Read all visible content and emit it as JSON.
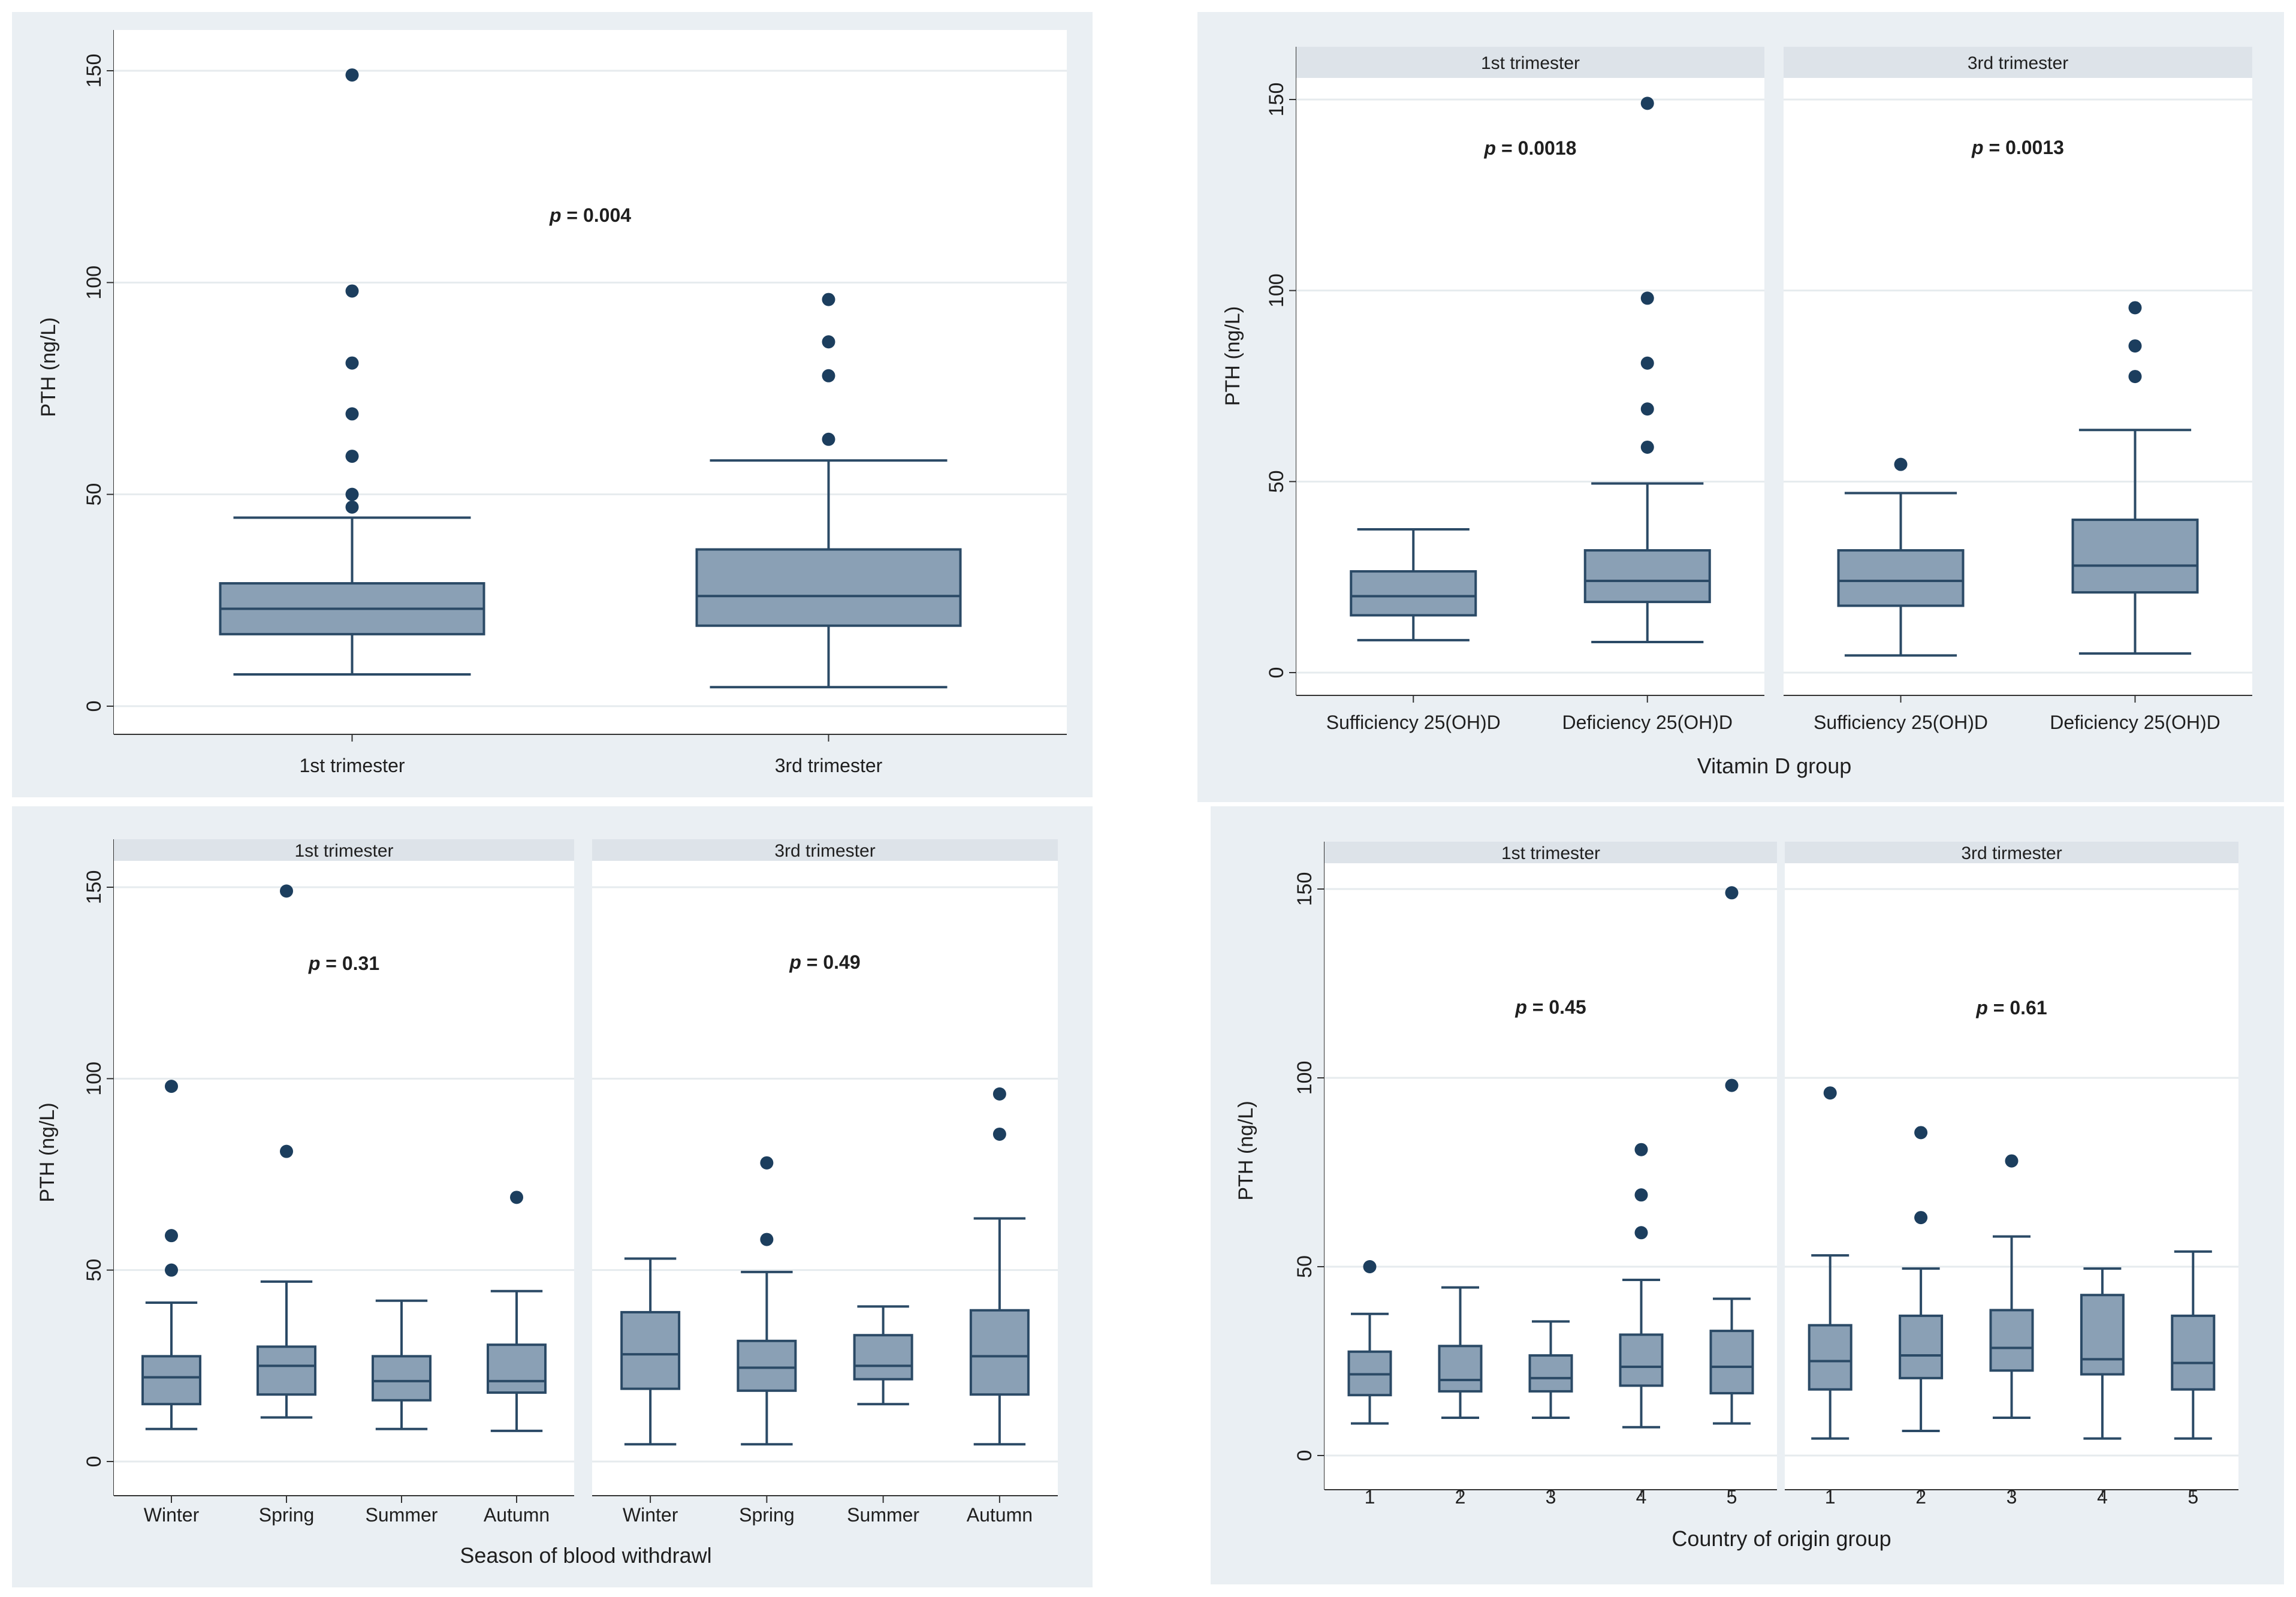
{
  "style": {
    "panel_bg": "#eaeff3",
    "box_fill": "#8aa0b5",
    "box_stroke": "#2b4a66",
    "outlier": "#1c3e5e",
    "strip_bg": "#dde3e9",
    "grid": "#e6ebee"
  },
  "chart_data": [
    {
      "panel_id": "a",
      "type": "boxplot",
      "ylabel": "PTH (ng/L)",
      "xlabel": "",
      "ylim": [
        0,
        150
      ],
      "yticks": [
        0,
        50,
        100,
        150
      ],
      "ytick_labels": [
        "0",
        "50",
        "100",
        "150"
      ],
      "grid": true,
      "facets": [
        {
          "strip": "",
          "annotation": "p = 0.004",
          "categories": [
            "1st trimester",
            "3rd trimester"
          ],
          "boxes": [
            {
              "min": 7.5,
              "q1": 17,
              "median": 23,
              "q3": 29,
              "max": 44.5,
              "outliers": [
                47,
                50,
                59,
                69,
                81,
                98,
                149
              ]
            },
            {
              "min": 4.5,
              "q1": 19,
              "median": 26,
              "q3": 37,
              "max": 58,
              "outliers": [
                63,
                78,
                86,
                96
              ]
            }
          ]
        }
      ]
    },
    {
      "panel_id": "b",
      "type": "boxplot",
      "ylabel": "PTH (ng/L)",
      "xlabel": "Vitamin D group",
      "ylim": [
        0,
        150
      ],
      "yticks": [
        0,
        50,
        100,
        150
      ],
      "ytick_labels": [
        "0",
        "50",
        "100",
        "150"
      ],
      "grid": true,
      "facets": [
        {
          "strip": "1st trimester",
          "annotation": "p = 0.0018",
          "categories": [
            "Sufficiency 25(OH)D",
            "Deficiency 25(OH)D"
          ],
          "boxes": [
            {
              "min": 8.5,
              "q1": 15,
              "median": 20,
              "q3": 26.5,
              "max": 37.5,
              "outliers": []
            },
            {
              "min": 8,
              "q1": 18.5,
              "median": 24,
              "q3": 32,
              "max": 49.5,
              "outliers": [
                59,
                69,
                81,
                98,
                149
              ]
            }
          ]
        },
        {
          "strip": "3rd trimester",
          "annotation": "p = 0.0013",
          "categories": [
            "Sufficiency 25(OH)D",
            "Deficiency 25(OH)D"
          ],
          "boxes": [
            {
              "min": 4.5,
              "q1": 17.5,
              "median": 24,
              "q3": 32,
              "max": 47,
              "outliers": [
                54.5
              ]
            },
            {
              "min": 5,
              "q1": 21,
              "median": 28,
              "q3": 40,
              "max": 63.5,
              "outliers": [
                77.5,
                85.5,
                95.5
              ]
            }
          ]
        }
      ]
    },
    {
      "panel_id": "c",
      "type": "boxplot",
      "ylabel": "PTH (ng/L)",
      "xlabel": "Season of blood withdrawl",
      "ylim": [
        0,
        150
      ],
      "yticks": [
        0,
        50,
        100,
        150
      ],
      "ytick_labels": [
        "0",
        "50",
        "100",
        "150"
      ],
      "grid": true,
      "facets": [
        {
          "strip": "1st trimester",
          "annotation": "p = 0.31",
          "categories": [
            "Winter",
            "Spring",
            "Summer",
            "Autumn"
          ],
          "boxes": [
            {
              "min": 8.5,
              "q1": 15,
              "median": 22,
              "q3": 27.5,
              "max": 41.5,
              "outliers": [
                50,
                59,
                98
              ]
            },
            {
              "min": 11.5,
              "q1": 17.5,
              "median": 25,
              "q3": 30,
              "max": 47,
              "outliers": [
                81,
                149
              ]
            },
            {
              "min": 8.5,
              "q1": 16,
              "median": 21,
              "q3": 27.5,
              "max": 42,
              "outliers": []
            },
            {
              "min": 8,
              "q1": 18,
              "median": 21,
              "q3": 30.5,
              "max": 44.5,
              "outliers": [
                69
              ]
            }
          ]
        },
        {
          "strip": "3rd trimester",
          "annotation": "p = 0.49",
          "categories": [
            "Winter",
            "Spring",
            "Summer",
            "Autumn"
          ],
          "boxes": [
            {
              "min": 4.5,
              "q1": 19,
              "median": 28,
              "q3": 39,
              "max": 53,
              "outliers": []
            },
            {
              "min": 4.5,
              "q1": 18.5,
              "median": 24.5,
              "q3": 31.5,
              "max": 49.5,
              "outliers": [
                58,
                78
              ]
            },
            {
              "min": 15,
              "q1": 21.5,
              "median": 25,
              "q3": 33,
              "max": 40.5,
              "outliers": []
            },
            {
              "min": 4.5,
              "q1": 17.5,
              "median": 27.5,
              "q3": 39.5,
              "max": 63.5,
              "outliers": [
                85.5,
                96
              ]
            }
          ]
        }
      ]
    },
    {
      "panel_id": "d",
      "type": "boxplot",
      "ylabel": "PTH (ng/L)",
      "xlabel": "Country of origin group",
      "ylim": [
        0,
        150
      ],
      "yticks": [
        0,
        50,
        100,
        150
      ],
      "ytick_labels": [
        "0",
        "50",
        "100",
        "150"
      ],
      "grid": true,
      "facets": [
        {
          "strip": "1st trimester",
          "annotation": "p = 0.45",
          "categories": [
            "1",
            "2",
            "3",
            "4",
            "5"
          ],
          "boxes": [
            {
              "min": 8.5,
              "q1": 16,
              "median": 21.5,
              "q3": 27.5,
              "max": 37.5,
              "outliers": [
                50
              ]
            },
            {
              "min": 10,
              "q1": 17,
              "median": 20,
              "q3": 29,
              "max": 44.5,
              "outliers": []
            },
            {
              "min": 10,
              "q1": 17,
              "median": 20.5,
              "q3": 26.5,
              "max": 35.5,
              "outliers": []
            },
            {
              "min": 7.5,
              "q1": 18.5,
              "median": 23.5,
              "q3": 32,
              "max": 46.5,
              "outliers": [
                59,
                69,
                81
              ]
            },
            {
              "min": 8.5,
              "q1": 16.5,
              "median": 23.5,
              "q3": 33,
              "max": 41.5,
              "outliers": [
                98,
                149
              ]
            }
          ]
        },
        {
          "strip": "3rd tirmester",
          "annotation": "p = 0.61",
          "categories": [
            "1",
            "2",
            "3",
            "4",
            "5"
          ],
          "boxes": [
            {
              "min": 4.5,
              "q1": 17.5,
              "median": 25,
              "q3": 34.5,
              "max": 53,
              "outliers": [
                96
              ]
            },
            {
              "min": 6.5,
              "q1": 20.5,
              "median": 26.5,
              "q3": 37,
              "max": 49.5,
              "outliers": [
                63,
                85.5
              ]
            },
            {
              "min": 10,
              "q1": 22.5,
              "median": 28.5,
              "q3": 38.5,
              "max": 58,
              "outliers": [
                78
              ]
            },
            {
              "min": 4.5,
              "q1": 21.5,
              "median": 25.5,
              "q3": 42.5,
              "max": 49.5,
              "outliers": []
            },
            {
              "min": 4.5,
              "q1": 17.5,
              "median": 24.5,
              "q3": 37,
              "max": 54,
              "outliers": []
            }
          ]
        }
      ]
    }
  ]
}
